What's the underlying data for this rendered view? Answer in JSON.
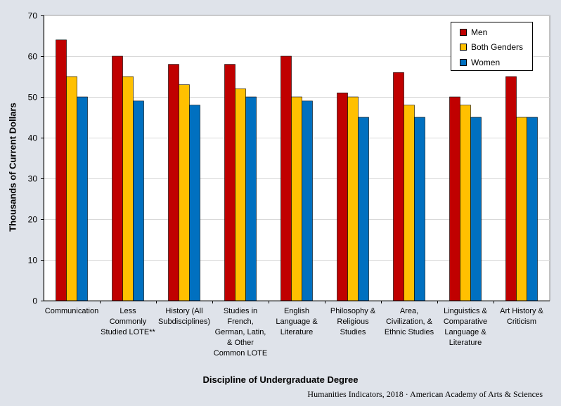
{
  "chart_data": {
    "type": "bar",
    "title": "",
    "xlabel": "Discipline of Undergraduate Degree",
    "ylabel": "Thousands of Current Dollars",
    "ylim": [
      0,
      70
    ],
    "yticks": [
      0,
      10,
      20,
      30,
      40,
      50,
      60,
      70
    ],
    "grid": true,
    "legend_position": "top-right",
    "categories": [
      "Communication",
      "Less Commonly Studied LOTE**",
      "History (All Subdisciplines)",
      "Studies in French, German, Latin, & Other Common LOTE",
      "English Language & Literature",
      "Philosophy & Religious Studies",
      "Area, Civilization, & Ethnic Studies",
      "Linguistics & Comparative Language & Literature",
      "Art History & Criticism"
    ],
    "category_lines": [
      [
        "Communication"
      ],
      [
        "Less",
        "Commonly",
        "Studied LOTE**"
      ],
      [
        "History (All",
        "Subdisciplines)"
      ],
      [
        "Studies in",
        "French,",
        "German, Latin,",
        "& Other",
        "Common LOTE"
      ],
      [
        "English",
        "Language &",
        "Literature"
      ],
      [
        "Philosophy &",
        "Religious",
        "Studies"
      ],
      [
        "Area,",
        "Civilization, &",
        "Ethnic Studies"
      ],
      [
        "Linguistics &",
        "Comparative",
        "Language &",
        "Literature"
      ],
      [
        "Art History &",
        "Criticism"
      ]
    ],
    "series": [
      {
        "name": "Men",
        "color": "#c00000",
        "values": [
          64,
          60,
          58,
          58,
          60,
          51,
          56,
          50,
          55
        ]
      },
      {
        "name": "Both Genders",
        "color": "#ffc000",
        "values": [
          55,
          55,
          53,
          52,
          50,
          50,
          48,
          48,
          45
        ]
      },
      {
        "name": "Women",
        "color": "#0070c0",
        "values": [
          50,
          49,
          48,
          50,
          49,
          45,
          45,
          45,
          45
        ]
      }
    ]
  },
  "footer": "Humanities Indicators, 2018 · American Academy of Arts & Sciences"
}
